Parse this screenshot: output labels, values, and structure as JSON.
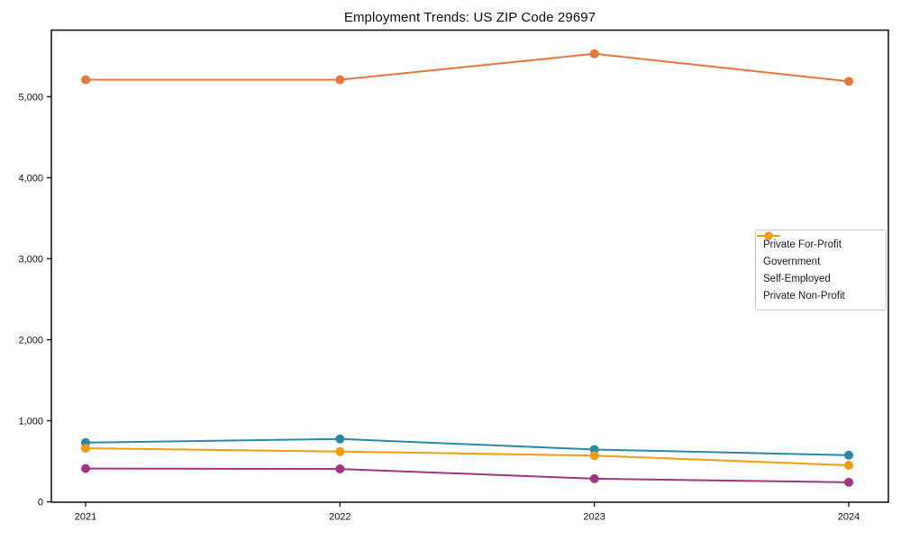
{
  "chart_data": {
    "type": "line",
    "title": "Employment Trends: US ZIP Code 29697",
    "categories": [
      "2021",
      "2022",
      "2023",
      "2024"
    ],
    "series": [
      {
        "name": "Private For-Profit",
        "color": "#e8763c",
        "values": [
          5210,
          5210,
          5530,
          5190
        ]
      },
      {
        "name": "Government",
        "color": "#2a87a8",
        "values": [
          730,
          775,
          645,
          575
        ]
      },
      {
        "name": "Self-Employed",
        "color": "#a2357f",
        "values": [
          410,
          405,
          285,
          240
        ]
      },
      {
        "name": "Private Non-Profit",
        "color": "#f09c0e",
        "values": [
          660,
          620,
          570,
          450
        ]
      }
    ],
    "xlabel": "",
    "ylabel": "",
    "ylim": [
      0,
      5822
    ],
    "yticks": [
      0,
      1000,
      2000,
      3000,
      4000,
      5000
    ],
    "ytick_labels": [
      "0",
      "1,000",
      "2,000",
      "3,000",
      "4,000",
      "5,000"
    ],
    "grid": false,
    "legend_position": "center right",
    "axis_color": "#1a1a1a",
    "marker_radius": 5,
    "line_width": 2
  }
}
